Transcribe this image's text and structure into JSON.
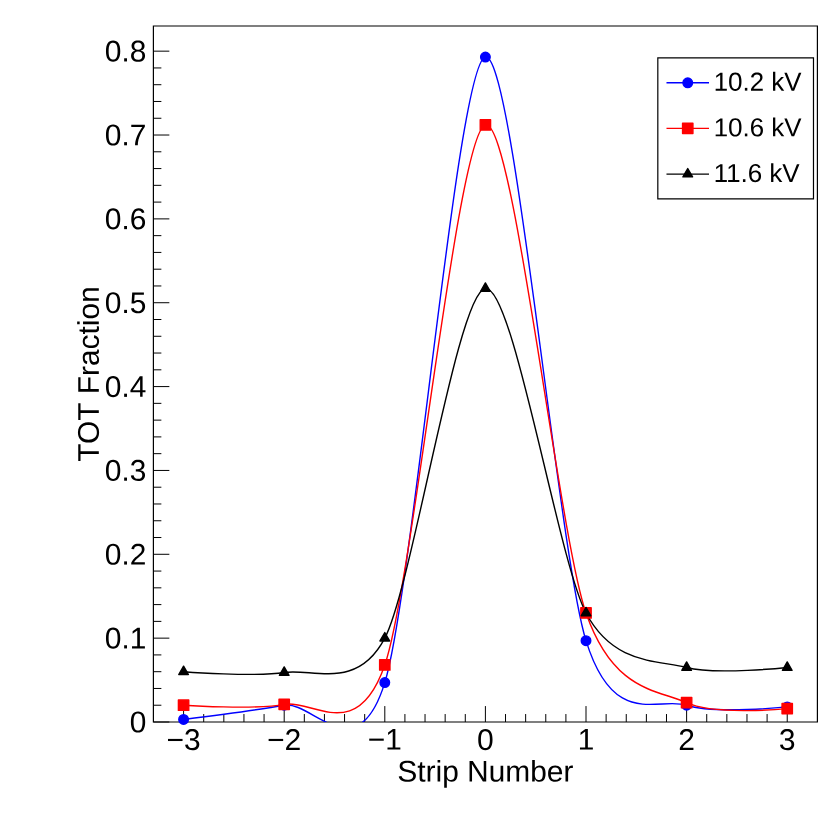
{
  "chart_data": {
    "type": "line",
    "xlabel": "Strip Number",
    "ylabel": "TOT Fraction",
    "x": [
      -3,
      -2,
      -1,
      0,
      1,
      2,
      3
    ],
    "series": [
      {
        "name": "10.2 kV",
        "color": "#0000ff",
        "marker": "circle",
        "values": [
          0.003,
          0.02,
          0.047,
          0.793,
          0.097,
          0.02,
          0.018
        ]
      },
      {
        "name": "10.6 kV",
        "color": "#ff0000",
        "marker": "square",
        "values": [
          0.02,
          0.021,
          0.068,
          0.712,
          0.13,
          0.023,
          0.016
        ]
      },
      {
        "name": "11.6 kV",
        "color": "#000000",
        "marker": "triangle",
        "values": [
          0.06,
          0.059,
          0.1,
          0.517,
          0.13,
          0.065,
          0.065
        ]
      }
    ],
    "xlim": [
      -3.3,
      3.3
    ],
    "ylim": [
      0,
      0.83
    ],
    "xticks": [
      {
        "value": -3,
        "label": "−3"
      },
      {
        "value": -2,
        "label": "−2"
      },
      {
        "value": -1,
        "label": "−1"
      },
      0,
      1,
      2,
      3
    ],
    "yticks": [
      0,
      0.1,
      0.2,
      0.3,
      0.4,
      0.5,
      0.6,
      0.7,
      0.8
    ],
    "grid": false,
    "legend": "top right"
  }
}
